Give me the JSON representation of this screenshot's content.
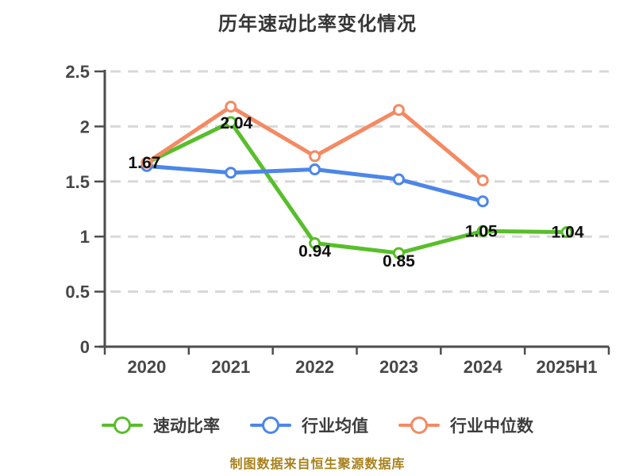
{
  "title": "历年速动比率变化情况",
  "footer": "制图数据来自恒生聚源数据库",
  "colors": {
    "quick_ratio": "#58be2a",
    "industry_avg": "#4c86e8",
    "industry_median": "#f48a63",
    "grid": "#d8d8d8",
    "axis": "#4d4d4d",
    "tick_text": "#474747",
    "data_label": "#0f0f0f"
  },
  "legend": {
    "items": [
      {
        "label": "速动比率",
        "color_key": "quick_ratio"
      },
      {
        "label": "行业均值",
        "color_key": "industry_avg"
      },
      {
        "label": "行业中位数",
        "color_key": "industry_median"
      }
    ]
  },
  "chart_data": {
    "type": "line",
    "title": "历年速动比率变化情况",
    "categories": [
      "2020",
      "2021",
      "2022",
      "2023",
      "2024",
      "2025H1"
    ],
    "series": [
      {
        "name": "速动比率",
        "color_key": "quick_ratio",
        "values": [
          1.67,
          2.04,
          0.94,
          0.85,
          1.05,
          1.04
        ],
        "point_labels": [
          "1.67",
          "2.04",
          "0.94",
          "0.85",
          "1.05",
          "1.04"
        ]
      },
      {
        "name": "行业均值",
        "color_key": "industry_avg",
        "values": [
          1.64,
          1.58,
          1.61,
          1.52,
          1.32,
          null
        ],
        "point_labels": null
      },
      {
        "name": "行业中位数",
        "color_key": "industry_median",
        "values": [
          1.67,
          2.18,
          1.73,
          2.15,
          1.51,
          null
        ],
        "point_labels": null
      }
    ],
    "ylim": [
      0,
      2.5
    ],
    "ytick_labels": [
      "0",
      "0.5",
      "1",
      "1.5",
      "2",
      "2.5"
    ],
    "grid": "horizontal-dashed",
    "legend_position": "bottom"
  }
}
